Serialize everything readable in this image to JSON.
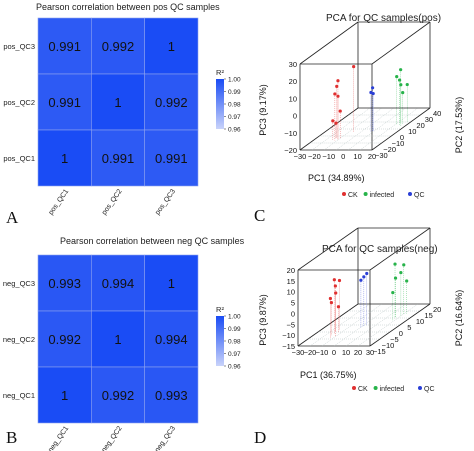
{
  "panels": {
    "a": {
      "letter": "A",
      "title": "Pearson correlation between pos QC samples"
    },
    "b": {
      "letter": "B",
      "title": "Pearson correlation between neg QC samples"
    },
    "c": {
      "letter": "C",
      "title": "PCA for QC samples(pos)"
    },
    "d": {
      "letter": "D",
      "title": "PCA for QC samples(neg)"
    }
  },
  "colors": {
    "heat_low": "#7088f0",
    "heat_high": "#1a4cf5",
    "ck": "#e03030",
    "infected": "#27b34a",
    "qc": "#2a3fd6"
  },
  "chart_data": [
    {
      "type": "heatmap",
      "title": "Pearson correlation between pos QC samples",
      "rows": [
        "pos_QC3",
        "pos_QC2",
        "pos_QC1"
      ],
      "columns": [
        "pos_QC1",
        "pos_QC2",
        "pos_QC3"
      ],
      "values": [
        [
          0.991,
          0.992,
          1
        ],
        [
          0.991,
          1,
          0.992
        ],
        [
          1,
          0.991,
          0.991
        ]
      ],
      "labels": [
        [
          "0.991",
          "0.992",
          "1"
        ],
        [
          "0.991",
          "1",
          "0.992"
        ],
        [
          "1",
          "0.991",
          "0.991"
        ]
      ],
      "colorbar": {
        "label": "R²",
        "min": 0.96,
        "max": 1.0,
        "ticks": [
          "1.00",
          "0.99",
          "0.98",
          "0.97",
          "0.96"
        ]
      }
    },
    {
      "type": "heatmap",
      "title": "Pearson correlation between neg QC samples",
      "rows": [
        "neg_QC3",
        "neg_QC2",
        "neg_QC1"
      ],
      "columns": [
        "neg_QC1",
        "neg_QC2",
        "neg_QC3"
      ],
      "values": [
        [
          0.993,
          0.994,
          1
        ],
        [
          0.992,
          1,
          0.994
        ],
        [
          1,
          0.992,
          0.993
        ]
      ],
      "labels": [
        [
          "0.993",
          "0.994",
          "1"
        ],
        [
          "0.992",
          "1",
          "0.994"
        ],
        [
          "1",
          "0.992",
          "0.993"
        ]
      ],
      "colorbar": {
        "label": "R²",
        "min": 0.96,
        "max": 1.0,
        "ticks": [
          "1.00",
          "0.99",
          "0.98",
          "0.97",
          "0.96"
        ]
      }
    },
    {
      "type": "scatter",
      "title": "PCA for QC samples(pos)",
      "xlabel": "PC1 (34.89%)",
      "ylabel": "PC2 (17.53%)",
      "zlabel": "PC3 (9.17%)",
      "xticks": [
        "−30",
        "−20",
        "−10",
        "0",
        "10",
        "20"
      ],
      "yticks": [
        "−30",
        "−20",
        "−10",
        "0",
        "10",
        "20",
        "30",
        "40"
      ],
      "zticks": [
        "−20",
        "−10",
        "0",
        "10",
        "20",
        "30"
      ],
      "legend": [
        "CK",
        "infected",
        "QC"
      ],
      "series": [
        {
          "name": "CK",
          "points": [
            [
              -14,
              -12,
              14
            ],
            [
              -16,
              -10,
              10
            ],
            [
              -15,
              -14,
              7
            ],
            [
              -13,
              -11,
              -4
            ],
            [
              -17,
              -13,
              -9
            ],
            [
              -16,
              -11,
              -11
            ],
            [
              -14,
              -12,
              5
            ],
            [
              -10,
              0,
              18
            ]
          ]
        },
        {
          "name": "infected",
          "points": [
            [
              15,
              12,
              6
            ],
            [
              18,
              16,
              2
            ],
            [
              16,
              14,
              -2
            ],
            [
              17,
              10,
              4
            ],
            [
              14,
              15,
              11
            ],
            [
              13,
              12,
              8
            ]
          ]
        },
        {
          "name": "QC",
          "points": [
            [
              2,
              0,
              3
            ],
            [
              3,
              1,
              2
            ],
            [
              2,
              2,
              5
            ]
          ]
        }
      ]
    },
    {
      "type": "scatter",
      "title": "PCA for QC samples(neg)",
      "xlabel": "PC1 (36.75%)",
      "ylabel": "PC2 (16.64%)",
      "zlabel": "PC3 (9.87%)",
      "xticks": [
        "−30",
        "−20",
        "−10",
        "0",
        "10",
        "20",
        "30"
      ],
      "yticks": [
        "−15",
        "−10",
        "−5",
        "0",
        "5",
        "10",
        "15",
        "20"
      ],
      "zticks": [
        "−15",
        "−10",
        "−5",
        "0",
        "5",
        "10",
        "15",
        "20"
      ],
      "legend": [
        "CK",
        "infected",
        "QC"
      ],
      "series": [
        {
          "name": "CK",
          "points": [
            [
              -14,
              -5,
              10
            ],
            [
              -16,
              -3,
              6
            ],
            [
              -13,
              -8,
              3
            ],
            [
              -15,
              -6,
              0
            ],
            [
              -12,
              -4,
              -3
            ],
            [
              -10,
              -7,
              5
            ],
            [
              -14,
              -2,
              8
            ]
          ]
        },
        {
          "name": "infected",
          "points": [
            [
              18,
              8,
              10
            ],
            [
              20,
              10,
              5
            ],
            [
              22,
              12,
              0
            ],
            [
              19,
              6,
              -2
            ],
            [
              17,
              9,
              3
            ],
            [
              21,
              11,
              8
            ]
          ]
        },
        {
          "name": "QC",
          "points": [
            [
              2,
              1,
              8
            ],
            [
              3,
              2,
              9
            ],
            [
              1,
              0,
              7
            ]
          ]
        }
      ]
    }
  ]
}
